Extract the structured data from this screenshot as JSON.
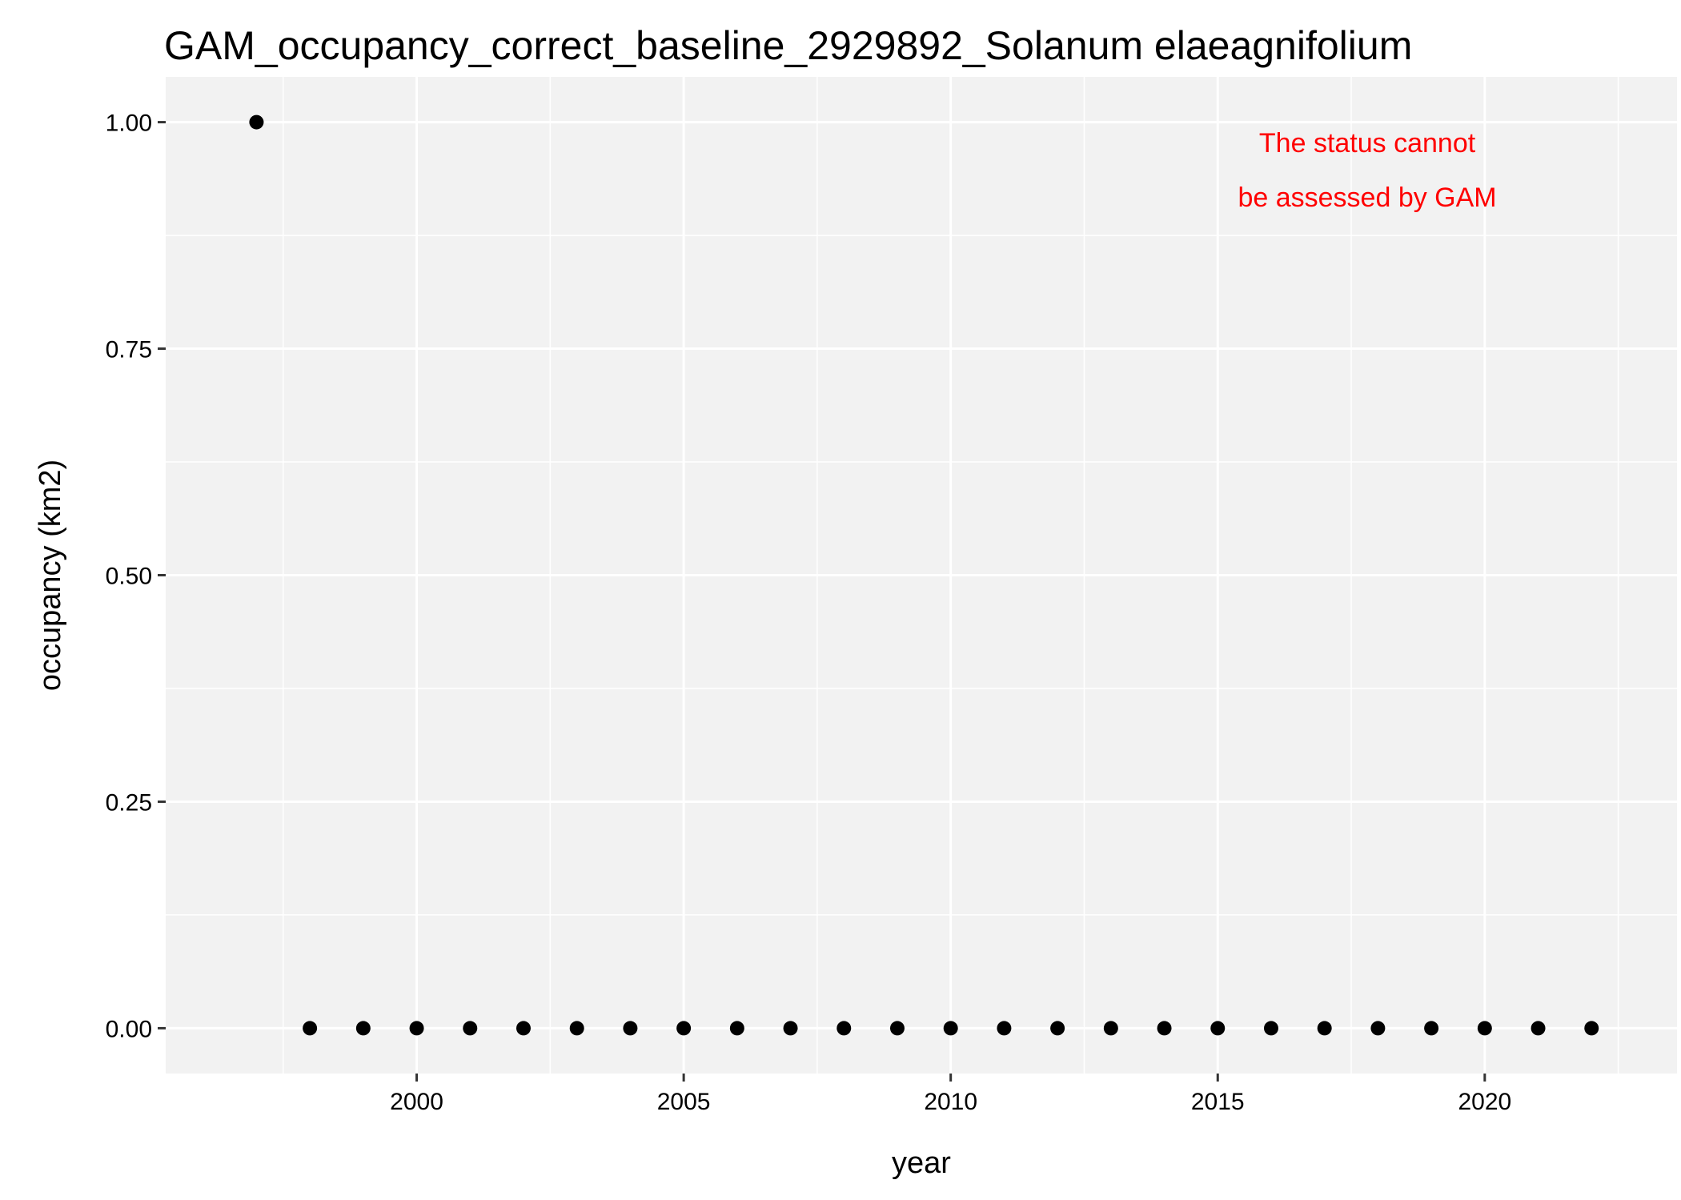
{
  "chart_data": {
    "type": "scatter",
    "title": "GAM_occupancy_correct_baseline_2929892_Solanum elaeagnifolium",
    "xlabel": "year",
    "ylabel": "occupancy (km2)",
    "xlim": [
      1995.3,
      2023.6
    ],
    "ylim": [
      -0.05,
      1.05
    ],
    "x_ticks": [
      2000,
      2005,
      2010,
      2015,
      2020
    ],
    "y_ticks": [
      0,
      0.25,
      0.5,
      0.75,
      1.0
    ],
    "y_tick_labels": [
      "0.00",
      "0.25",
      "0.50",
      "0.75",
      "1.00"
    ],
    "grid": true,
    "panel_color": "#f2f2f2",
    "point_color": "#000000",
    "annotation": {
      "lines": [
        "The status cannot",
        "be assessed by GAM"
      ],
      "color": "#ff0000",
      "placement": "top-right"
    },
    "points": [
      {
        "x": 1997,
        "y": 1
      },
      {
        "x": 1998,
        "y": 0
      },
      {
        "x": 1999,
        "y": 0
      },
      {
        "x": 2000,
        "y": 0
      },
      {
        "x": 2001,
        "y": 0
      },
      {
        "x": 2002,
        "y": 0
      },
      {
        "x": 2003,
        "y": 0
      },
      {
        "x": 2004,
        "y": 0
      },
      {
        "x": 2005,
        "y": 0
      },
      {
        "x": 2006,
        "y": 0
      },
      {
        "x": 2007,
        "y": 0
      },
      {
        "x": 2008,
        "y": 0
      },
      {
        "x": 2009,
        "y": 0
      },
      {
        "x": 2010,
        "y": 0
      },
      {
        "x": 2011,
        "y": 0
      },
      {
        "x": 2012,
        "y": 0
      },
      {
        "x": 2013,
        "y": 0
      },
      {
        "x": 2014,
        "y": 0
      },
      {
        "x": 2015,
        "y": 0
      },
      {
        "x": 2016,
        "y": 0
      },
      {
        "x": 2017,
        "y": 0
      },
      {
        "x": 2018,
        "y": 0
      },
      {
        "x": 2019,
        "y": 0
      },
      {
        "x": 2020,
        "y": 0
      },
      {
        "x": 2021,
        "y": 0
      },
      {
        "x": 2022,
        "y": 0
      }
    ]
  }
}
